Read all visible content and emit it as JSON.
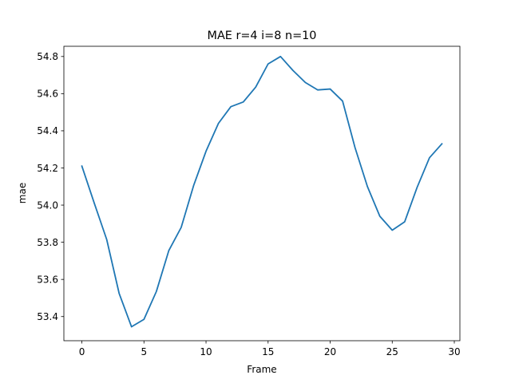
{
  "chart_data": {
    "type": "line",
    "title": "MAE r=4 i=8 n=10",
    "xlabel": "Frame",
    "ylabel": "mae",
    "xlim": [
      -1.45,
      30.45
    ],
    "ylim": [
      53.27,
      54.855
    ],
    "xticks": [
      0,
      5,
      10,
      15,
      20,
      25,
      30
    ],
    "xtick_labels": [
      "0",
      "5",
      "10",
      "15",
      "20",
      "25",
      "30"
    ],
    "yticks": [
      53.4,
      53.6,
      53.8,
      54.0,
      54.2,
      54.4,
      54.6,
      54.8
    ],
    "ytick_labels": [
      "53.4",
      "53.6",
      "53.8",
      "54.0",
      "54.2",
      "54.4",
      "54.6",
      "54.8"
    ],
    "grid": false,
    "series": [
      {
        "color": "#1f77b4",
        "x": [
          0,
          1,
          2,
          3,
          4,
          5,
          6,
          7,
          8,
          9,
          10,
          11,
          12,
          13,
          14,
          15,
          16,
          17,
          18,
          19,
          20,
          21,
          22,
          23,
          24,
          25,
          26,
          27,
          28,
          29
        ],
        "values": [
          54.21,
          54.01,
          53.815,
          53.525,
          53.345,
          53.385,
          53.535,
          53.755,
          53.88,
          54.105,
          54.29,
          54.44,
          54.53,
          54.555,
          54.635,
          54.76,
          54.8,
          54.725,
          54.66,
          54.62,
          54.625,
          54.56,
          54.31,
          54.1,
          53.94,
          53.865,
          53.91,
          54.095,
          54.255,
          54.33
        ]
      }
    ]
  }
}
